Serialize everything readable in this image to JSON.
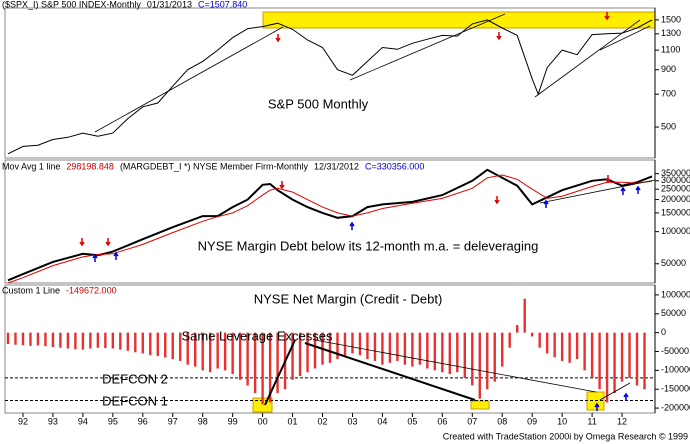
{
  "chart_data": [
    {
      "type": "line",
      "log_scale": true,
      "header": [
        "($SPX_I) S&P 500 INDEX-Monthly",
        "01/31/2013",
        "C=1507.840"
      ],
      "header_colors": [
        "#000000",
        "#000000",
        "#0000cc"
      ],
      "annotations": [
        "S&P 500 Monthly"
      ],
      "xlim": [
        1991.4,
        2013.1
      ],
      "ylim": [
        364,
        1660
      ],
      "yticks": [
        1500,
        1300,
        1100,
        900,
        700,
        500
      ],
      "x": [
        1991.5,
        1992,
        1992.5,
        1993,
        1993.5,
        1994,
        1994.5,
        1995,
        1995.5,
        1996,
        1996.5,
        1997,
        1997.5,
        1998,
        1998.5,
        1999,
        1999.5,
        2000,
        2000.5,
        2001,
        2001.5,
        2002,
        2002.5,
        2003,
        2003.5,
        2004,
        2004.5,
        2005,
        2005.5,
        2006,
        2006.5,
        2007,
        2007.5,
        2008,
        2008.5,
        2009,
        2009.2,
        2009.5,
        2010,
        2010.5,
        2011,
        2011.5,
        2012,
        2012.5,
        2013
      ],
      "series": [
        {
          "color": "#000000",
          "values": [
            380,
            410,
            415,
            440,
            450,
            470,
            455,
            470,
            545,
            615,
            640,
            760,
            900,
            980,
            1100,
            1250,
            1370,
            1400,
            1450,
            1360,
            1220,
            1130,
            900,
            850,
            980,
            1130,
            1110,
            1180,
            1230,
            1280,
            1270,
            1440,
            1500,
            1380,
            1280,
            820,
            700,
            920,
            1100,
            1050,
            1290,
            1300,
            1310,
            1380,
            1500
          ]
        }
      ]
    },
    {
      "type": "line",
      "log_scale": true,
      "header": [
        "Mov Avg 1 line",
        "298198.848",
        "(MARGDEBT_I  *) NYSE Member Firm-Monthly",
        "12/31/2012",
        "C=330356.000"
      ],
      "header_colors": [
        "#000000",
        "#cc0000",
        "#000000",
        "#000000",
        "#0000cc"
      ],
      "annotations": [
        "NYSE Margin Debt below its 12-month m.a. = deleveraging"
      ],
      "xlim": [
        1991.4,
        2013.1
      ],
      "ylim": [
        33000,
        450000
      ],
      "yticks": [
        350000,
        300000,
        250000,
        200000,
        150000,
        100000,
        50000
      ],
      "x": [
        1991.5,
        1992,
        1993,
        1994,
        1994.5,
        1995,
        1996,
        1997,
        1998,
        1998.5,
        1999,
        1999.5,
        2000,
        2000.25,
        2000.5,
        2001,
        2001.5,
        2002,
        2002.5,
        2003,
        2003.5,
        2004,
        2005,
        2006,
        2007,
        2007.5,
        2008,
        2008.5,
        2009,
        2009.5,
        2010,
        2011,
        2011.5,
        2012,
        2012.5,
        2013
      ],
      "series": [
        {
          "color": "#000000",
          "values": [
            35000,
            40000,
            52000,
            62000,
            60000,
            65000,
            85000,
            110000,
            140000,
            140000,
            170000,
            200000,
            275000,
            280000,
            245000,
            200000,
            170000,
            150000,
            135000,
            140000,
            170000,
            180000,
            190000,
            220000,
            300000,
            380000,
            320000,
            270000,
            180000,
            210000,
            245000,
            300000,
            310000,
            270000,
            290000,
            330000
          ]
        },
        {
          "color": "#dd0000",
          "values": [
            33000,
            37000,
            48000,
            58000,
            61000,
            62000,
            76000,
            98000,
            125000,
            138000,
            150000,
            175000,
            220000,
            245000,
            255000,
            235000,
            200000,
            170000,
            150000,
            140000,
            150000,
            165000,
            185000,
            205000,
            255000,
            320000,
            340000,
            310000,
            250000,
            205000,
            215000,
            265000,
            290000,
            290000,
            285000,
            298000
          ]
        }
      ]
    },
    {
      "type": "bar",
      "log_scale": false,
      "header": [
        "Custom 1 Line",
        "-149672.000"
      ],
      "header_colors": [
        "#000000",
        "#cc0000"
      ],
      "annotations": [
        "NYSE Net Margin (Credit - Debt)",
        "Same Leverage Excesses"
      ],
      "reference_lines": [
        {
          "label": "DEFCON 2",
          "value": -120000
        },
        {
          "label": "DEFCON 1",
          "value": -180000
        }
      ],
      "xlim": [
        1991.4,
        2013.1
      ],
      "ylim": [
        -213000,
        121000
      ],
      "yticks": [
        100000,
        50000,
        0,
        -50000,
        -100000,
        -150000,
        -200000
      ],
      "xticks": [
        {
          "value": 1992,
          "label": "92"
        },
        {
          "value": 1993,
          "label": "93"
        },
        {
          "value": 1994,
          "label": "94"
        },
        {
          "value": 1995,
          "label": "95"
        },
        {
          "value": 1996,
          "label": "96"
        },
        {
          "value": 1997,
          "label": "97"
        },
        {
          "value": 1998,
          "label": "98"
        },
        {
          "value": 1999,
          "label": "99"
        },
        {
          "value": 2000,
          "label": "00"
        },
        {
          "value": 2001,
          "label": "01"
        },
        {
          "value": 2002,
          "label": "02"
        },
        {
          "value": 2003,
          "label": "03"
        },
        {
          "value": 2004,
          "label": "04"
        },
        {
          "value": 2005,
          "label": "05"
        },
        {
          "value": 2006,
          "label": "06"
        },
        {
          "value": 2007,
          "label": "07"
        },
        {
          "value": 2008,
          "label": "08"
        },
        {
          "value": 2009,
          "label": "09"
        },
        {
          "value": 2010,
          "label": "10"
        },
        {
          "value": 2011,
          "label": "11"
        },
        {
          "value": 2012,
          "label": "12"
        }
      ],
      "x": [
        1991.5,
        1991.75,
        1992,
        1992.25,
        1992.5,
        1992.75,
        1993,
        1993.25,
        1993.5,
        1993.75,
        1994,
        1994.25,
        1994.5,
        1994.75,
        1995,
        1995.25,
        1995.5,
        1995.75,
        1996,
        1996.25,
        1996.5,
        1996.75,
        1997,
        1997.25,
        1997.5,
        1997.75,
        1998,
        1998.25,
        1998.5,
        1998.75,
        1999,
        1999.25,
        1999.5,
        1999.75,
        2000,
        2000.25,
        2000.5,
        2000.75,
        2001,
        2001.25,
        2001.5,
        2001.75,
        2002,
        2002.25,
        2002.5,
        2002.75,
        2003,
        2003.25,
        2003.5,
        2003.75,
        2004,
        2004.25,
        2004.5,
        2004.75,
        2005,
        2005.25,
        2005.5,
        2005.75,
        2006,
        2006.25,
        2006.5,
        2006.75,
        2007,
        2007.25,
        2007.5,
        2007.75,
        2008,
        2008.25,
        2008.5,
        2008.75,
        2009,
        2009.25,
        2009.5,
        2009.75,
        2010,
        2010.25,
        2010.5,
        2010.75,
        2011,
        2011.25,
        2011.5,
        2011.75,
        2012,
        2012.25,
        2012.5,
        2012.75
      ],
      "series": [
        {
          "color": "#e83030",
          "values": [
            -30000,
            -32000,
            -33000,
            -35000,
            -34000,
            -36000,
            -38000,
            -40000,
            -42000,
            -44000,
            -45000,
            -42000,
            -40000,
            -41000,
            -42000,
            -45000,
            -48000,
            -52000,
            -55000,
            -60000,
            -62000,
            -66000,
            -70000,
            -75000,
            -85000,
            -90000,
            -100000,
            -105000,
            -95000,
            -100000,
            -110000,
            -125000,
            -140000,
            -160000,
            -190000,
            -185000,
            -160000,
            -150000,
            -125000,
            -115000,
            -105000,
            -95000,
            -85000,
            -80000,
            -70000,
            -60000,
            -55000,
            -60000,
            -70000,
            -75000,
            -85000,
            -80000,
            -75000,
            -85000,
            -90000,
            -85000,
            -95000,
            -100000,
            -105000,
            -110000,
            -105000,
            -120000,
            -140000,
            -175000,
            -150000,
            -130000,
            -90000,
            -40000,
            20000,
            90000,
            -10000,
            -40000,
            -55000,
            -65000,
            -75000,
            -80000,
            -70000,
            -100000,
            -120000,
            -150000,
            -185000,
            -160000,
            -130000,
            -120000,
            -140000,
            -150000
          ]
        }
      ],
      "footer": "Created with TradeStation 2000i by Omega Research © 1999"
    }
  ]
}
